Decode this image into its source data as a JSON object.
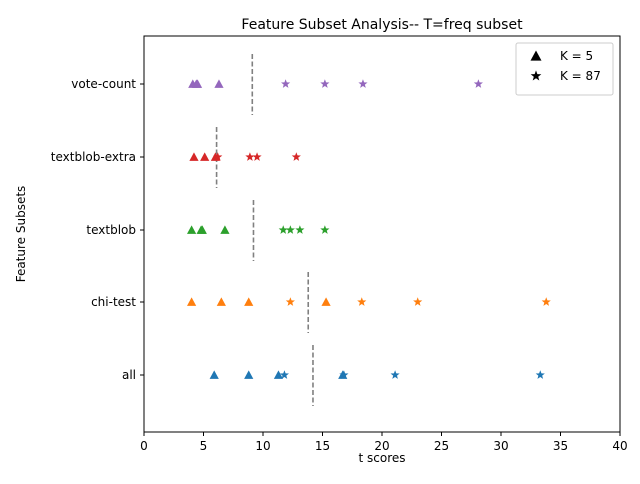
{
  "chart_data": {
    "type": "scatter",
    "title": "Feature Subset Analysis-- T=freq subset",
    "xlabel": "t scores",
    "ylabel": "Feature Subsets",
    "xlim": [
      0,
      40
    ],
    "xticks": [
      "0",
      "5",
      "10",
      "15",
      "20",
      "25",
      "30",
      "35",
      "40"
    ],
    "xtick_values": [
      0,
      5,
      10,
      15,
      20,
      25,
      30,
      35,
      40
    ],
    "categories": [
      "vote-count",
      "textblob-extra",
      "textblob",
      "chi-test",
      "all"
    ],
    "grid": false,
    "legend": {
      "position": "top-right",
      "entries": [
        {
          "marker": "triangle",
          "label": "K = 5"
        },
        {
          "marker": "star",
          "label": "K = 87"
        }
      ]
    },
    "series": [
      {
        "category": "vote-count",
        "color": "#9467bd",
        "k5": [
          4.1,
          4.4,
          4.5,
          6.3
        ],
        "k87": [
          11.9,
          15.2,
          18.4,
          28.1
        ],
        "threshold": 9.1
      },
      {
        "category": "textblob-extra",
        "color": "#d62728",
        "k5": [
          4.2,
          5.1,
          6.0
        ],
        "k87": [
          6.2,
          8.9,
          9.5,
          12.8
        ],
        "threshold": 6.1
      },
      {
        "category": "textblob",
        "color": "#2ca02c",
        "k5": [
          4.0,
          4.8,
          4.9,
          6.8
        ],
        "k87": [
          11.7,
          12.3,
          13.1,
          15.2
        ],
        "threshold": 9.2
      },
      {
        "category": "chi-test",
        "color": "#ff7f0e",
        "k5": [
          4.0,
          6.5,
          8.8,
          15.3
        ],
        "k87": [
          12.3,
          18.3,
          23.0,
          33.8
        ],
        "threshold": 13.8
      },
      {
        "category": "all",
        "color": "#1f77b4",
        "k5": [
          5.9,
          8.8,
          11.3,
          16.7
        ],
        "k87": [
          11.8,
          16.8,
          21.1,
          33.3
        ],
        "threshold": 14.2
      }
    ]
  }
}
